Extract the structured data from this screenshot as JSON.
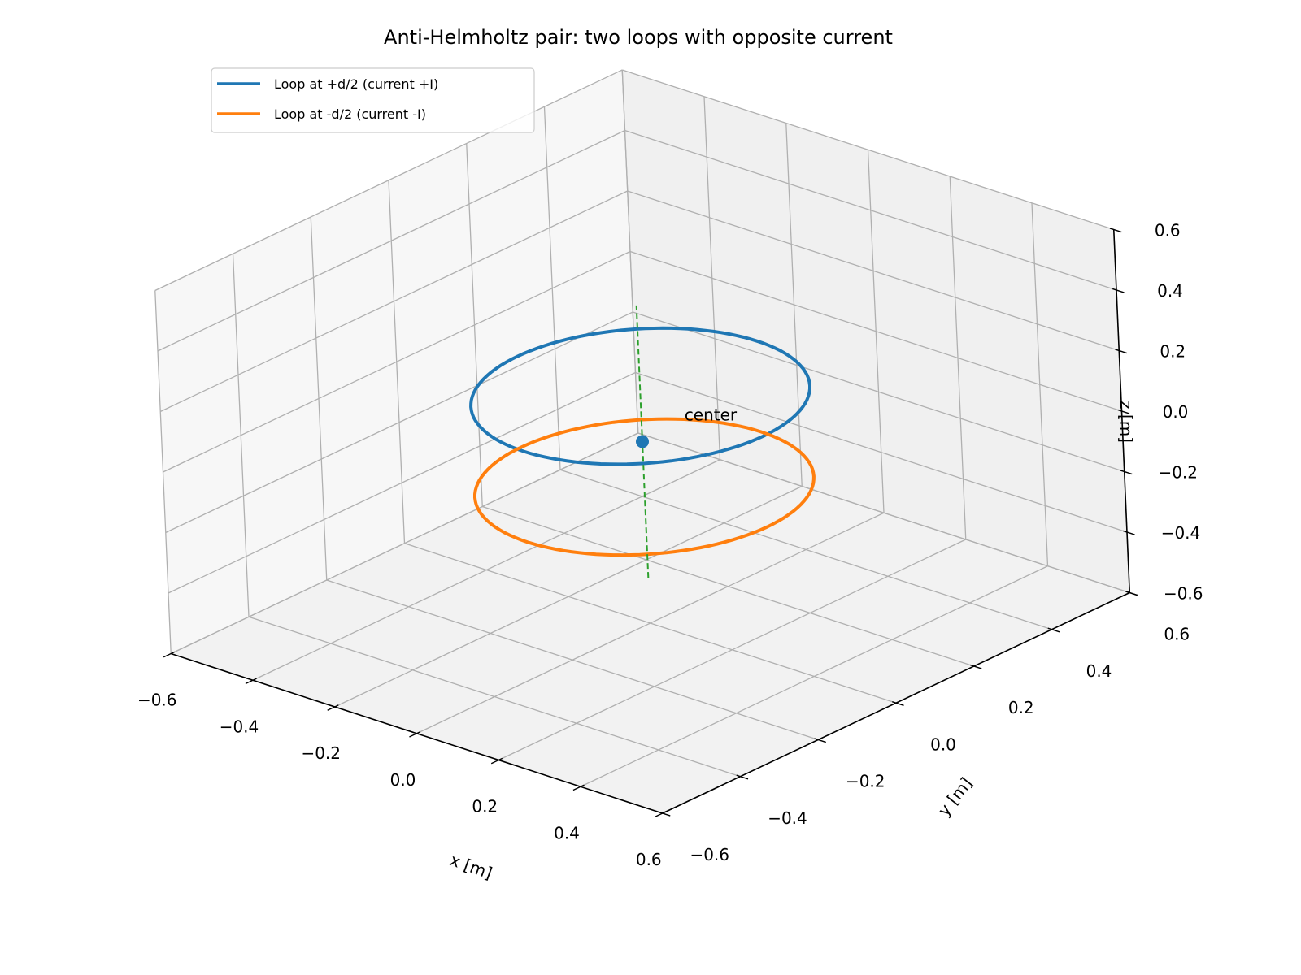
{
  "chart_data": {
    "type": "line3d",
    "title": "Anti-Helmholtz pair: two loops with opposite current",
    "xlabel": "x [m]",
    "ylabel": "y [m]",
    "zlabel": "z [m]",
    "xlim": [
      -0.6,
      0.6
    ],
    "ylim": [
      -0.6,
      0.6
    ],
    "zlim": [
      -0.6,
      0.6
    ],
    "xticks": [
      "−0.6",
      "−0.4",
      "−0.2",
      "0.0",
      "0.2",
      "0.4",
      "0.6"
    ],
    "yticks": [
      "−0.6",
      "−0.4",
      "−0.2",
      "0.0",
      "0.2",
      "0.4",
      "0.6"
    ],
    "zticks": [
      "−0.6",
      "−0.4",
      "−0.2",
      "0.0",
      "0.2",
      "0.4",
      "0.6"
    ],
    "grid": true,
    "legend_position": "upper-left",
    "series": [
      {
        "name": "Loop at +d/2 (current +I)",
        "shape": "circle",
        "radius": 0.3,
        "center": [
          0,
          0,
          0.15
        ],
        "plane": "z",
        "color": "#1f77b4"
      },
      {
        "name": "Loop at -d/2 (current -I)",
        "shape": "circle",
        "radius": 0.3,
        "center": [
          0,
          0,
          -0.15
        ],
        "plane": "z",
        "color": "#ff7f0e"
      }
    ],
    "axis_line": {
      "x": [
        0,
        0
      ],
      "y": [
        0,
        0
      ],
      "z": [
        -0.45,
        0.45
      ],
      "color": "#2ca02c",
      "style": "dashed"
    },
    "point": {
      "x": 0,
      "y": 0,
      "z": 0,
      "color": "#1f77b4",
      "label": "center"
    }
  }
}
